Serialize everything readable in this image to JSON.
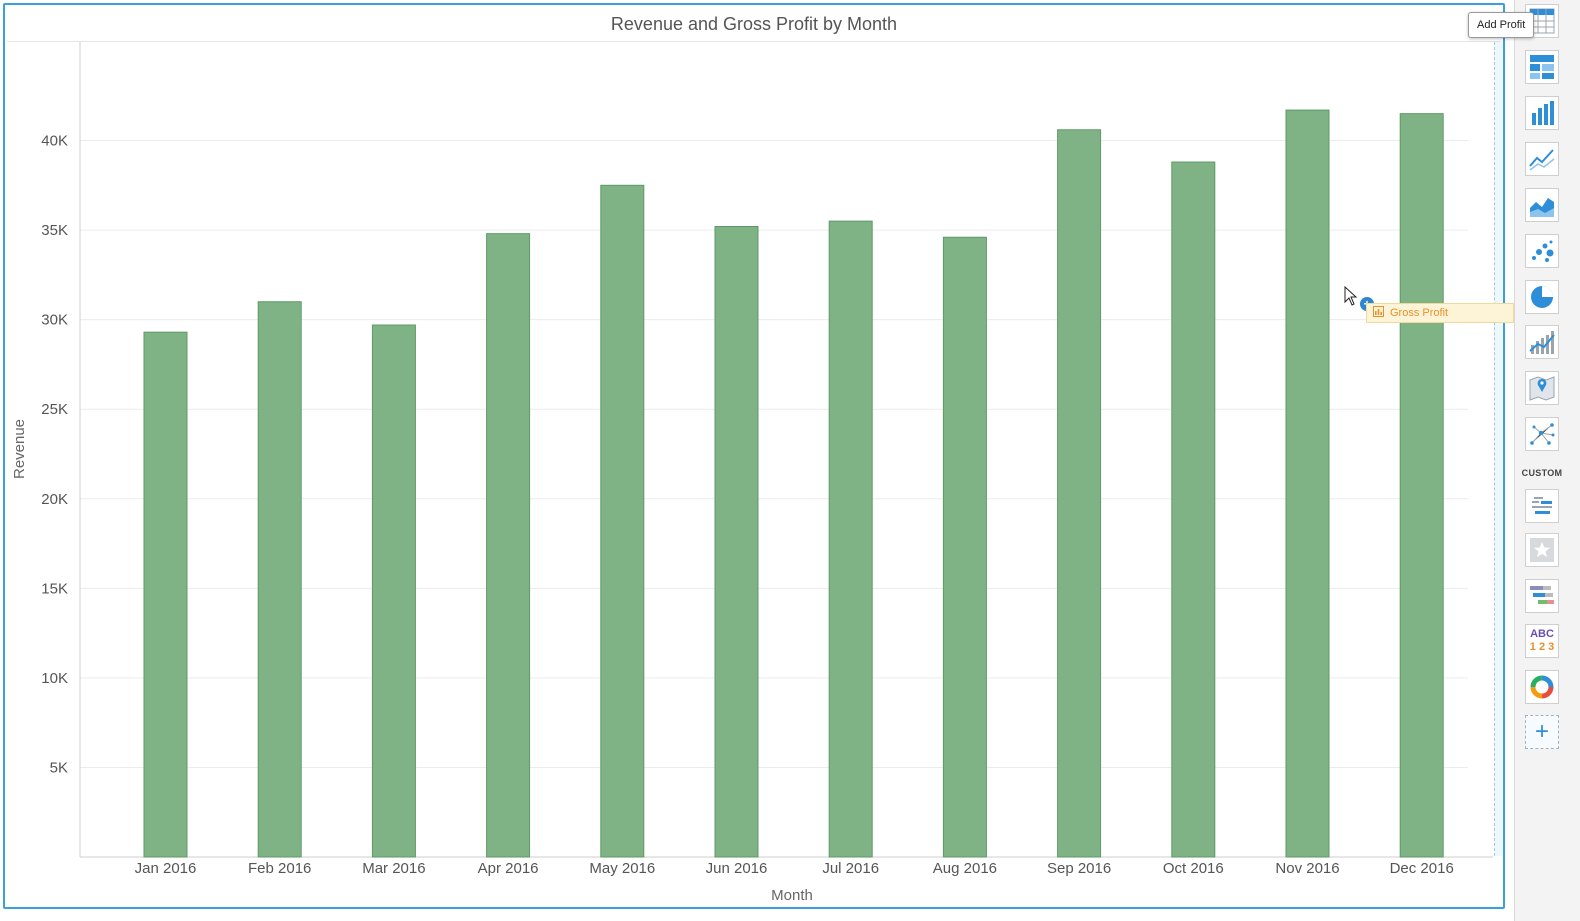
{
  "chart_data": {
    "type": "bar",
    "title": "Revenue and Gross Profit by Month",
    "xlabel": "Month",
    "ylabel": "Revenue",
    "categories": [
      "Jan 2016",
      "Feb 2016",
      "Mar 2016",
      "Apr 2016",
      "May 2016",
      "Jun 2016",
      "Jul 2016",
      "Aug 2016",
      "Sep 2016",
      "Oct 2016",
      "Nov 2016",
      "Dec 2016"
    ],
    "series": [
      {
        "name": "Revenue",
        "color": "#7fb386",
        "values": [
          29300,
          31000,
          29700,
          34800,
          37500,
          35200,
          35500,
          34600,
          40600,
          38800,
          41700,
          41500
        ]
      }
    ],
    "ylim": [
      0,
      45500
    ],
    "yticks": [
      5000,
      10000,
      15000,
      20000,
      25000,
      30000,
      35000,
      40000
    ],
    "ytick_labels": [
      "5K",
      "10K",
      "15K",
      "20K",
      "25K",
      "30K",
      "35K",
      "40K"
    ],
    "grid": true,
    "legend": "none"
  },
  "palette": {
    "tooltip": "Add Profit",
    "custom_label": "CUSTOM",
    "items": [
      {
        "icon": "table-chart-icon"
      },
      {
        "icon": "crosstab-chart-icon"
      },
      {
        "icon": "bar-chart-icon"
      },
      {
        "icon": "line-chart-icon"
      },
      {
        "icon": "area-chart-icon"
      },
      {
        "icon": "scatter-chart-icon"
      },
      {
        "icon": "pie-chart-icon"
      },
      {
        "icon": "combo-chart-icon"
      },
      {
        "icon": "map-chart-icon"
      },
      {
        "icon": "network-chart-icon"
      },
      {
        "icon": "word-cloud-icon"
      },
      {
        "icon": "star-icon"
      },
      {
        "icon": "gantt-chart-icon"
      },
      {
        "icon": "text-number-icon",
        "text_top": "ABC",
        "text_bottom": "1 2 3"
      },
      {
        "icon": "donut-chart-icon"
      },
      {
        "icon": "add-icon",
        "text": "+"
      }
    ]
  },
  "drag": {
    "field_label": "Gross Profit",
    "plus": "+",
    "accent": "#e8912c"
  },
  "colors": {
    "panel_border": "#3aa0d8",
    "bar_fill": "#7fb386",
    "bar_stroke": "#5e9a66",
    "icon_blue": "#2e8ed8"
  }
}
